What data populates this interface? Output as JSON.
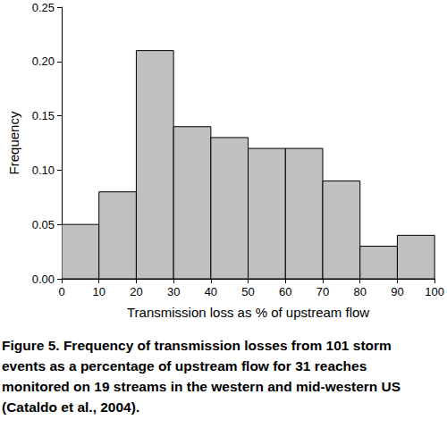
{
  "chart_data": {
    "type": "histogram",
    "caption": "Figure 5. Frequency of transmission losses from 101 storm events as a percentage of upstream flow for 31 reaches monitored on 19 streams in the western and mid-western US (Cataldo et al., 2004).",
    "x_label": "Transmission loss as % of upstream flow",
    "y_label": "Frequency",
    "bins": [
      0,
      10,
      20,
      30,
      40,
      50,
      60,
      70,
      80,
      90,
      100
    ],
    "values": [
      0.05,
      0.08,
      0.21,
      0.14,
      0.13,
      0.12,
      0.12,
      0.09,
      0.03,
      0.04
    ],
    "color": "#c0c0c0",
    "xlim": [
      0,
      100
    ],
    "xticks": [
      0,
      10,
      20,
      30,
      40,
      50,
      60,
      70,
      80,
      90,
      100
    ],
    "ylim": [
      0,
      0.25
    ],
    "yticks": [
      {
        "value": 0,
        "label": "0.00"
      },
      {
        "value": 0.05,
        "label": "0.05"
      },
      {
        "value": 0.1,
        "label": "0.10"
      },
      {
        "value": 0.15,
        "label": "0.15"
      },
      {
        "value": 0.2,
        "label": "0.20"
      },
      {
        "value": 0.25,
        "label": "0.25"
      }
    ],
    "grid": false
  }
}
